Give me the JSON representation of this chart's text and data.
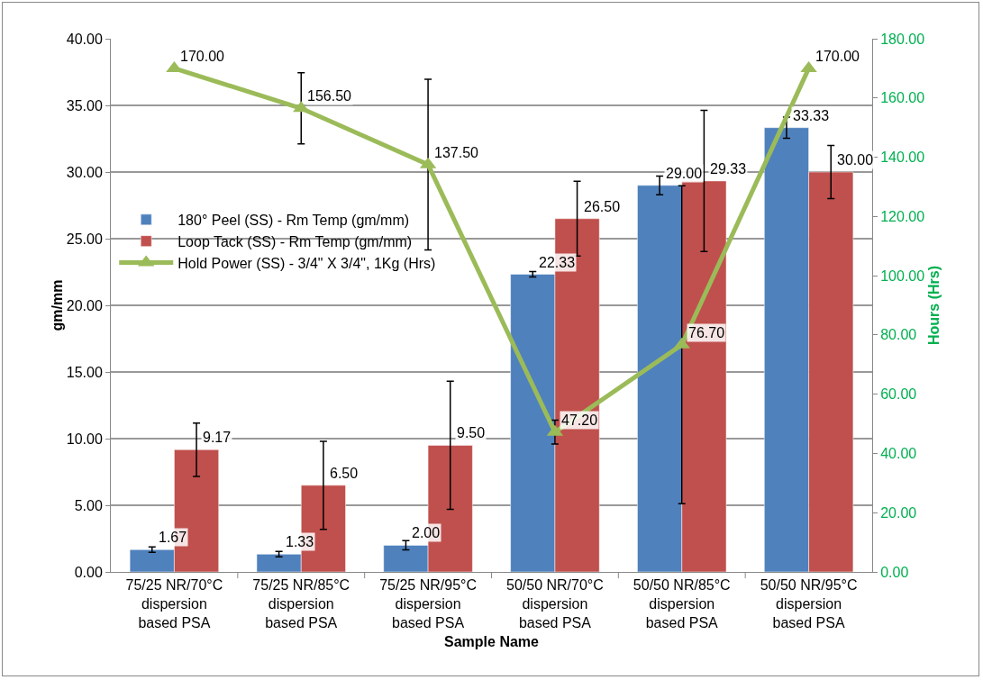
{
  "chart_data": {
    "type": "bar",
    "xlabel": "Sample Name",
    "ylabel": "gm/mm",
    "y2label": "Hours (Hrs)",
    "categories": [
      "75/25 NR/70°C dispersion based PSA",
      "75/25 NR/85°C dispersion based PSA",
      "75/25 NR/95°C dispersion based PSA",
      "50/50 NR/70°C dispersion based PSA",
      "50/50 NR/85°C dispersion based PSA",
      "50/50 NR/95°C dispersion based PSA"
    ],
    "series": [
      {
        "name": "180° Peel (SS) - Rm Temp (gm/mm)",
        "color": "#4f81bd",
        "values": [
          1.67,
          1.33,
          2.0,
          22.33,
          29.0,
          33.33
        ],
        "errors": [
          0.2,
          0.2,
          0.35,
          0.2,
          0.7,
          0.8
        ],
        "value_labels": [
          "1.67",
          "1.33",
          "2.00",
          "22.33",
          "29.00",
          "33.33"
        ]
      },
      {
        "name": "Loop Tack (SS) - Rm Temp (gm/mm)",
        "color": "#c0504d",
        "values": [
          9.17,
          6.5,
          9.5,
          26.5,
          29.33,
          30.0
        ],
        "errors": [
          2.0,
          3.3,
          4.8,
          2.8,
          5.3,
          2.0
        ],
        "value_labels": [
          "9.17",
          "6.50",
          "9.50",
          "26.50",
          "29.33",
          "30.00"
        ]
      },
      {
        "name": "Hold Power (SS) - 3/4\" X 3/4\", 1Kg (Hrs)",
        "type": "line",
        "axis": "y2",
        "color": "#9bbb59",
        "marker": "triangle",
        "values": [
          170,
          156.5,
          137.5,
          47.2,
          76.7,
          170
        ],
        "errors": [
          null,
          12,
          28.8,
          4,
          53.7,
          null
        ],
        "value_labels": [
          "170.00",
          "156.50",
          "137.50",
          "47.20",
          "76.70",
          "170.00"
        ]
      }
    ],
    "ylim": [
      0,
      40
    ],
    "yticks": [
      {
        "value": 0,
        "label": "0.00"
      },
      {
        "value": 5,
        "label": "5.00"
      },
      {
        "value": 10,
        "label": "10.00"
      },
      {
        "value": 15,
        "label": "15.00"
      },
      {
        "value": 20,
        "label": "20.00"
      },
      {
        "value": 25,
        "label": "25.00"
      },
      {
        "value": 30,
        "label": "30.00"
      },
      {
        "value": 35,
        "label": "35.00"
      },
      {
        "value": 40,
        "label": "40.00"
      }
    ],
    "y2lim": [
      0,
      180
    ],
    "y2ticks": [
      {
        "value": 0,
        "label": "0.00"
      },
      {
        "value": 20,
        "label": "20.00"
      },
      {
        "value": 40,
        "label": "40.00"
      },
      {
        "value": 60,
        "label": "60.00"
      },
      {
        "value": 80,
        "label": "80.00"
      },
      {
        "value": 100,
        "label": "100.00"
      },
      {
        "value": 120,
        "label": "120.00"
      },
      {
        "value": 140,
        "label": "140.00"
      },
      {
        "value": 160,
        "label": "160.00"
      },
      {
        "value": 180,
        "label": "180.00"
      }
    ],
    "grid": "y",
    "legend": "left"
  }
}
